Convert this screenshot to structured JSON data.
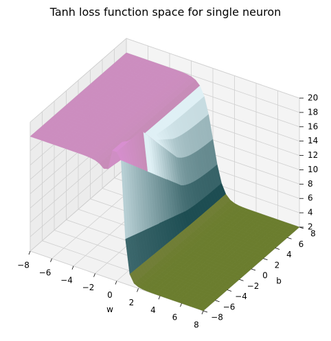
{
  "chart_data": {
    "type": "surface3d",
    "title": "Tanh loss function space for single neuron",
    "xlabel": "w",
    "ylabel": "b",
    "zlabel": "",
    "xlim": [
      -8,
      8
    ],
    "ylim": [
      -8,
      8
    ],
    "zlim": [
      2,
      20
    ],
    "x_ticks": [
      -8,
      -6,
      -4,
      -2,
      0,
      2,
      4,
      6,
      8
    ],
    "y_ticks": [
      -8,
      -6,
      -4,
      -2,
      0,
      2,
      4,
      6,
      8
    ],
    "z_ticks": [
      2,
      4,
      6,
      8,
      10,
      12,
      14,
      16,
      18,
      20
    ],
    "x_tick_labels": [
      "−8",
      "−6",
      "−4",
      "−2",
      "0",
      "2",
      "4",
      "6",
      "8"
    ],
    "y_tick_labels": [
      "−8",
      "−6",
      "−4",
      "−2",
      "0",
      "2",
      "4",
      "6",
      "8"
    ],
    "z_tick_labels": [
      "2",
      "4",
      "6",
      "8",
      "10",
      "12",
      "14",
      "16",
      "18",
      "20"
    ],
    "grid": true,
    "colormap": "cubehelix-like",
    "surface_levels": {
      "negative_w_plateau": 18,
      "positive_w_plateau": 2,
      "ridge_peak": 20,
      "ridge_trough": 6
    },
    "colors": {
      "high": "#d88fd1",
      "low": "#6b7d2e",
      "ridge_light": "#dff0f5",
      "ridge_dark": "#1d4d52",
      "pane": "#f2f2f2",
      "grid": "#cfcfcf"
    }
  }
}
